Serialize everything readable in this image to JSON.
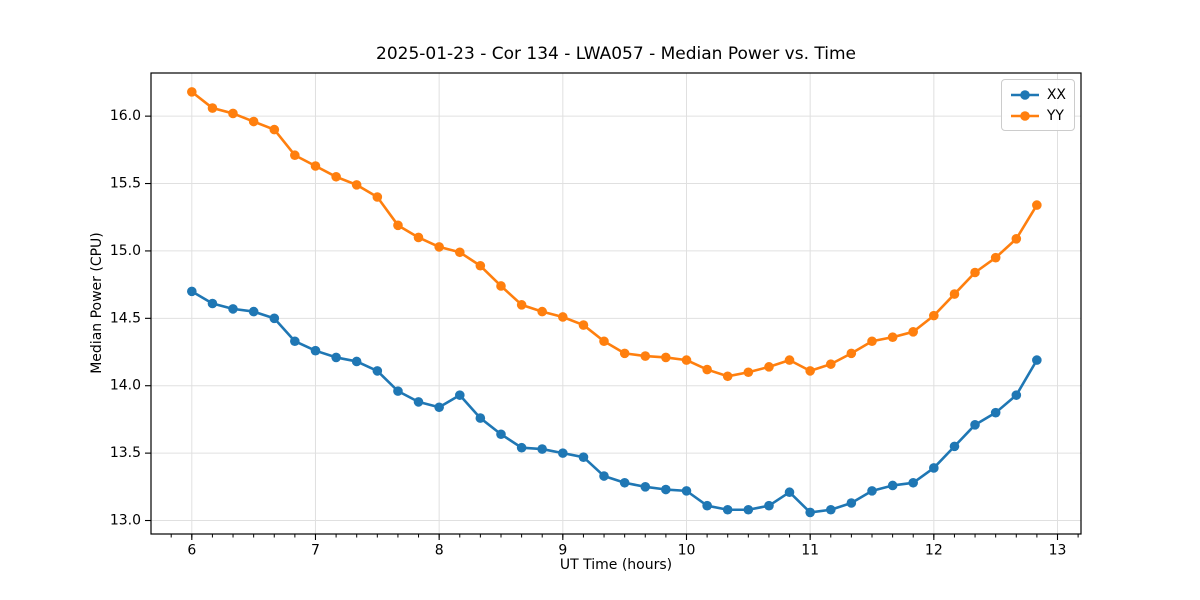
{
  "chart_data": {
    "type": "line",
    "title": "2025-01-23 - Cor 134 - LWA057 - Median Power vs. Time",
    "xlabel": "UT Time (hours)",
    "ylabel": "Median Power (CPU)",
    "xlim": [
      5.67,
      13.19
    ],
    "ylim": [
      12.9,
      16.32
    ],
    "xticks": [
      6,
      7,
      8,
      9,
      10,
      11,
      12,
      13
    ],
    "xtick_labels": [
      "6",
      "7",
      "8",
      "9",
      "10",
      "11",
      "12",
      "13"
    ],
    "x_minor_step": 0.1666667,
    "yticks": [
      13.0,
      13.5,
      14.0,
      14.5,
      15.0,
      15.5,
      16.0
    ],
    "ytick_labels": [
      "13.0",
      "13.5",
      "14.0",
      "14.5",
      "15.0",
      "15.5",
      "16.0"
    ],
    "grid": "major",
    "legend_position": "upper right",
    "background_color": "#ffffff",
    "grid_color": "#e0e0e0",
    "x": [
      6.0,
      6.167,
      6.333,
      6.5,
      6.667,
      6.833,
      7.0,
      7.167,
      7.333,
      7.5,
      7.667,
      7.833,
      8.0,
      8.167,
      8.333,
      8.5,
      8.667,
      8.833,
      9.0,
      9.167,
      9.333,
      9.5,
      9.667,
      9.833,
      10.0,
      10.167,
      10.333,
      10.5,
      10.667,
      10.833,
      11.0,
      11.167,
      11.333,
      11.5,
      11.667,
      11.833,
      12.0,
      12.167,
      12.333,
      12.5,
      12.667,
      12.833
    ],
    "series": [
      {
        "name": "XX",
        "color": "#1f77b4",
        "marker": "circle",
        "values": [
          14.7,
          14.61,
          14.57,
          14.55,
          14.5,
          14.33,
          14.26,
          14.21,
          14.18,
          14.11,
          13.96,
          13.88,
          13.84,
          13.93,
          13.76,
          13.64,
          13.54,
          13.53,
          13.5,
          13.47,
          13.33,
          13.28,
          13.25,
          13.23,
          13.22,
          13.11,
          13.08,
          13.08,
          13.11,
          13.21,
          13.06,
          13.08,
          13.13,
          13.22,
          13.26,
          13.28,
          13.39,
          13.55,
          13.71,
          13.8,
          13.93,
          14.19
        ]
      },
      {
        "name": "YY",
        "color": "#ff7f0e",
        "marker": "circle",
        "values": [
          16.18,
          16.06,
          16.02,
          15.96,
          15.9,
          15.71,
          15.63,
          15.55,
          15.49,
          15.4,
          15.19,
          15.1,
          15.03,
          14.99,
          14.89,
          14.74,
          14.6,
          14.55,
          14.51,
          14.45,
          14.33,
          14.24,
          14.22,
          14.21,
          14.19,
          14.12,
          14.07,
          14.1,
          14.14,
          14.19,
          14.11,
          14.16,
          14.24,
          14.33,
          14.36,
          14.4,
          14.52,
          14.68,
          14.84,
          14.95,
          15.09,
          15.34
        ]
      }
    ]
  }
}
